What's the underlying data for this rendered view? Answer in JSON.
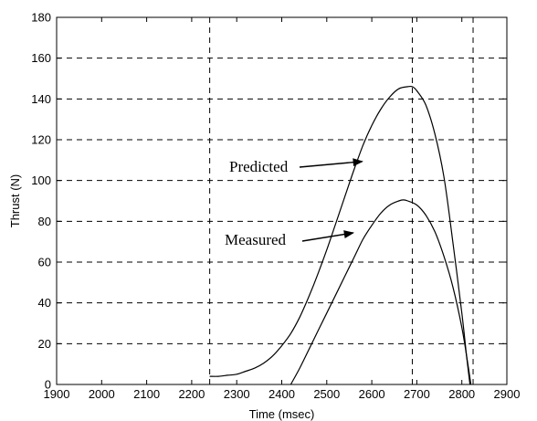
{
  "chart_data": {
    "type": "line",
    "title": "",
    "xlabel": "Time (msec)",
    "ylabel": "Thrust (N)",
    "xlim": [
      1900,
      2900
    ],
    "ylim": [
      0,
      180
    ],
    "xticks": [
      1900,
      2000,
      2100,
      2200,
      2300,
      2400,
      2500,
      2600,
      2700,
      2800,
      2900
    ],
    "yticks": [
      0,
      20,
      40,
      60,
      80,
      100,
      120,
      140,
      160,
      180
    ],
    "grid": true,
    "vertical_markers": [
      2240,
      2690,
      2825
    ],
    "series": [
      {
        "name": "Predicted",
        "x": [
          2240,
          2260,
          2280,
          2300,
          2320,
          2340,
          2360,
          2380,
          2400,
          2420,
          2440,
          2460,
          2480,
          2500,
          2520,
          2540,
          2560,
          2580,
          2600,
          2620,
          2640,
          2660,
          2680,
          2690,
          2700,
          2720,
          2740,
          2760,
          2780,
          2800,
          2810,
          2818
        ],
        "y": [
          4,
          4,
          4.5,
          5,
          6.5,
          8,
          10.5,
          14,
          19,
          25,
          33,
          43,
          54,
          66,
          79,
          92,
          105,
          117,
          127,
          135,
          141,
          145,
          146,
          146,
          144,
          137,
          123,
          102,
          70,
          35,
          15,
          0
        ]
      },
      {
        "name": "Measured",
        "x": [
          2420,
          2440,
          2460,
          2480,
          2500,
          2520,
          2540,
          2560,
          2580,
          2600,
          2620,
          2640,
          2660,
          2670,
          2680,
          2700,
          2720,
          2740,
          2760,
          2780,
          2800,
          2812,
          2820
        ],
        "y": [
          0,
          8,
          17,
          26,
          35,
          44,
          53,
          62,
          71,
          78,
          84,
          88,
          90,
          90.5,
          90,
          88,
          83,
          75,
          63,
          48,
          28,
          12,
          0
        ]
      }
    ],
    "annotations": [
      {
        "text": "Predicted",
        "target_x": 2585,
        "target_y": 108
      },
      {
        "text": "Measured",
        "target_x": 2565,
        "target_y": 73
      }
    ]
  }
}
